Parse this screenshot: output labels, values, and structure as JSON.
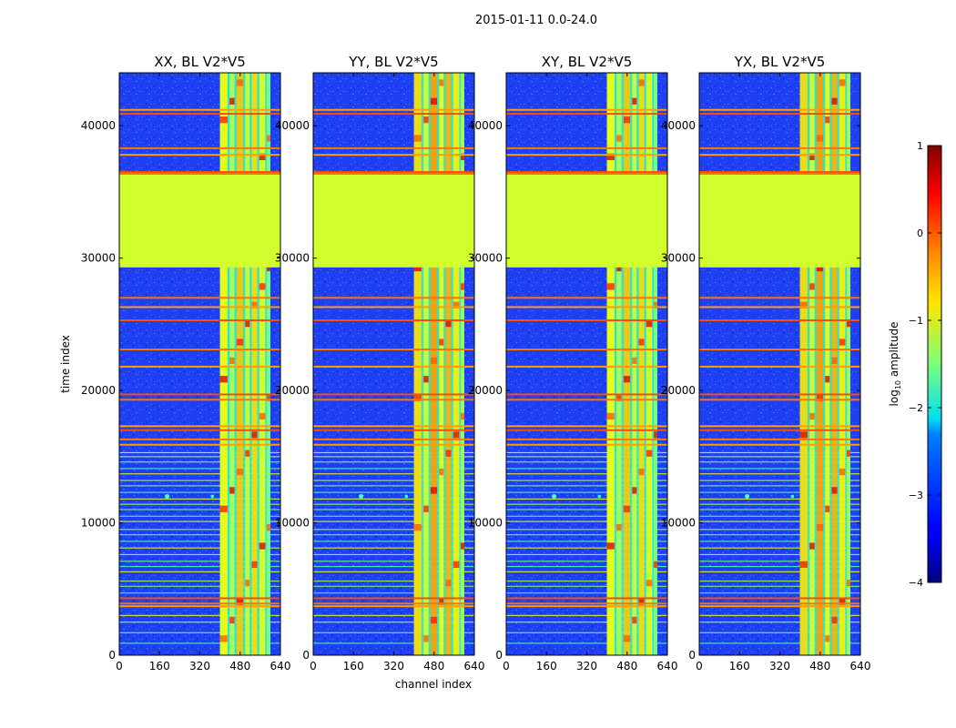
{
  "chart_data": {
    "type": "heatmap",
    "suptitle": "2015-01-11 0.0-24.0",
    "xlabel": "channel index",
    "ylabel": "time index",
    "xlim": [
      0,
      640
    ],
    "ylim": [
      0,
      44000
    ],
    "xticks": [
      0,
      160,
      320,
      480,
      640
    ],
    "yticks": [
      0,
      10000,
      20000,
      30000,
      40000
    ],
    "colorscale": "jet",
    "colorbar": {
      "label": "log",
      "label_sub": "10",
      "label_rest": " amplitude",
      "range": [
        -4,
        1
      ],
      "ticks": [
        -4,
        -3,
        -2,
        -1,
        0,
        1
      ],
      "tick_labels": [
        "−4",
        "−3",
        "−2",
        "−1",
        "0",
        "1"
      ]
    },
    "flagged_block": {
      "time_range": [
        29300,
        36300
      ],
      "log10_amplitude": -1.1
    },
    "rfi_channel_band": [
      400,
      600
    ],
    "strong_rfi_time_rows": [
      3700,
      3900,
      4300,
      15900,
      16300,
      17000,
      17300,
      19300,
      19700,
      21800,
      23100,
      25300,
      26300,
      27000,
      36500,
      37800,
      38300,
      40900,
      41200
    ],
    "panels": [
      {
        "title": "XX, BL V2*V5"
      },
      {
        "title": "YY, BL V2*V5"
      },
      {
        "title": "XY, BL V2*V5"
      },
      {
        "title": "YX, BL V2*V5"
      }
    ]
  }
}
